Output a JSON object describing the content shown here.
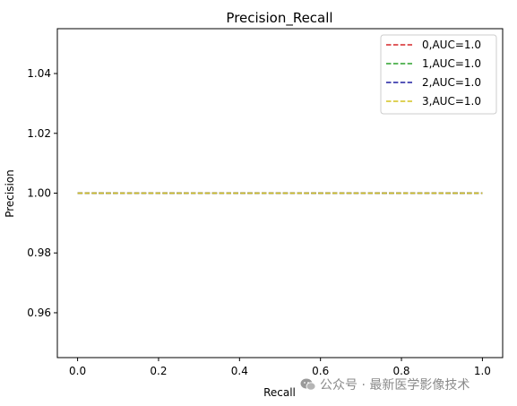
{
  "chart_data": {
    "type": "line",
    "title": "Precision_Recall",
    "xlabel": "Recall",
    "ylabel": "Precision",
    "xlim": [
      -0.05,
      1.05
    ],
    "ylim": [
      0.945,
      1.055
    ],
    "xticks": [
      "0.0",
      "0.2",
      "0.4",
      "0.6",
      "0.8",
      "1.0"
    ],
    "xtick_values": [
      0.0,
      0.2,
      0.4,
      0.6,
      0.8,
      1.0
    ],
    "yticks": [
      "0.96",
      "0.98",
      "1.00",
      "1.02",
      "1.04"
    ],
    "ytick_values": [
      0.96,
      0.98,
      1.0,
      1.02,
      1.04
    ],
    "grid": false,
    "legend_position": "top-right",
    "series": [
      {
        "name": "0,AUC=1.0",
        "color": "#d62728",
        "style": "dashed",
        "x": [
          0.0,
          1.0
        ],
        "y": [
          1.0,
          1.0
        ]
      },
      {
        "name": "1,AUC=1.0",
        "color": "#2ca02c",
        "style": "dashed",
        "x": [
          0.0,
          1.0
        ],
        "y": [
          1.0,
          1.0
        ]
      },
      {
        "name": "2,AUC=1.0",
        "color": "#1f1fa0",
        "style": "dashed",
        "x": [
          0.0,
          1.0
        ],
        "y": [
          1.0,
          1.0
        ]
      },
      {
        "name": "3,AUC=1.0",
        "color": "#d4c21e",
        "style": "dashed",
        "x": [
          0.0,
          1.0
        ],
        "y": [
          1.0,
          1.0
        ]
      }
    ]
  },
  "watermark": {
    "text": "公众号 · 最新医学影像技术",
    "icon": "wechat-icon"
  }
}
